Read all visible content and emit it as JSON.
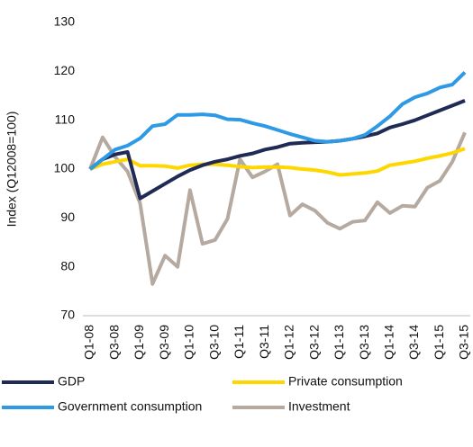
{
  "chart_data": {
    "type": "line",
    "y_label": "Index (Q12008=100)",
    "categories": [
      "Q1-08",
      null,
      "Q3-08",
      null,
      "Q1-09",
      null,
      "Q3-09",
      null,
      "Q1-10",
      null,
      "Q3-10",
      null,
      "Q1-11",
      null,
      "Q3-11",
      null,
      "Q1-12",
      null,
      "Q3-12",
      null,
      "Q1-13",
      null,
      "Q3-13",
      null,
      "Q1-14",
      null,
      "Q3-14",
      null,
      "Q1-15",
      null,
      "Q3-15"
    ],
    "series": [
      {
        "name": "GDP",
        "color": "#1f2a55",
        "values": [
          100,
          102,
          103,
          103.5,
          94,
          95.5,
          97,
          98.5,
          99.8,
          100.8,
          101.5,
          102,
          102.7,
          103.2,
          104,
          104.5,
          105.2,
          105.4,
          105.5,
          105.6,
          105.8,
          106.2,
          106.7,
          107.3,
          108.5,
          109.2,
          110,
          111,
          112,
          113,
          114
        ]
      },
      {
        "name": "Private consumption",
        "color": "#ffd700",
        "values": [
          100,
          101,
          101.5,
          102,
          100.7,
          100.7,
          100.6,
          100.2,
          100.8,
          101,
          101,
          100.8,
          100.5,
          100.3,
          100.4,
          100.4,
          100.3,
          100,
          99.8,
          99.4,
          98.8,
          99,
          99.2,
          99.6,
          100.8,
          101.2,
          101.6,
          102.2,
          102.7,
          103.3,
          104.2
        ]
      },
      {
        "name": "Government consumption",
        "color": "#2e9ae6",
        "values": [
          100,
          102,
          104,
          104.8,
          106.3,
          108.8,
          109.2,
          111.1,
          111.1,
          111.2,
          111,
          110.2,
          110.1,
          109.4,
          108.8,
          108,
          107.2,
          106.5,
          105.8,
          105.6,
          105.8,
          106.2,
          107,
          108.8,
          110.8,
          113.3,
          114.7,
          115.5,
          116.7,
          117.3,
          119.8
        ]
      },
      {
        "name": "Investment",
        "color": "#b5a9a0",
        "values": [
          100,
          106.5,
          102.5,
          99.5,
          93,
          76.5,
          82.3,
          80,
          95.7,
          84.7,
          85.5,
          89.8,
          102,
          98.3,
          99.5,
          101,
          90.5,
          92.8,
          91.5,
          89,
          87.8,
          89.2,
          89.5,
          93.2,
          91,
          92.5,
          92.3,
          96.2,
          97.6,
          101.5,
          107.5
        ]
      }
    ],
    "ylim": [
      70,
      130
    ],
    "yticks": [
      70,
      80,
      90,
      100,
      110,
      120,
      130
    ]
  }
}
